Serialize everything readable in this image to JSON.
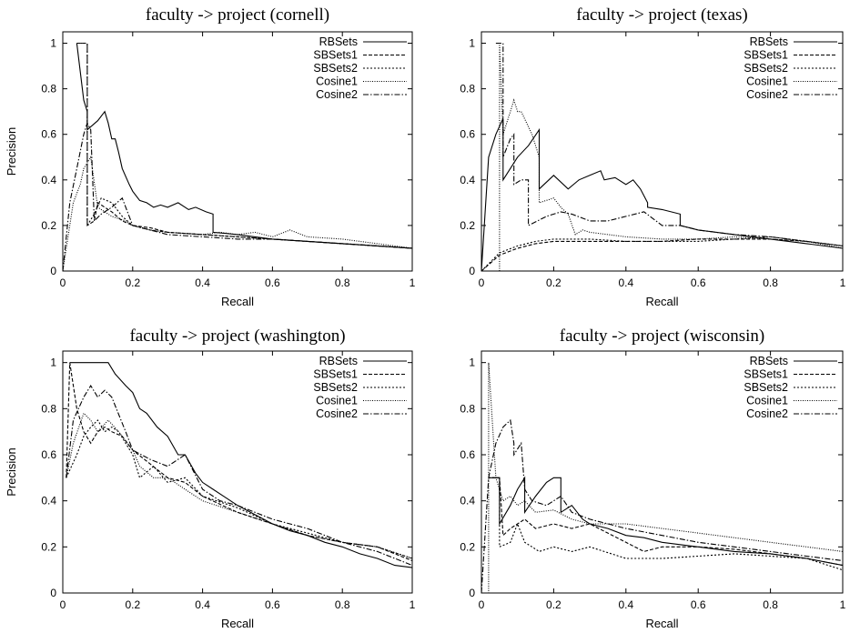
{
  "chart_data": [
    {
      "type": "line",
      "title": "faculty -> project (cornell)",
      "xlabel": "Recall",
      "ylabel": "Precision",
      "xlim": [
        0,
        1
      ],
      "ylim": [
        0,
        1.05
      ],
      "xticks": [
        "0",
        "0.2",
        "0.4",
        "0.6",
        "0.8",
        "1"
      ],
      "yticks": [
        "0",
        "0.2",
        "0.4",
        "0.6",
        "0.8",
        "1"
      ],
      "grid": false,
      "legend_position": "top-right",
      "series": [
        {
          "name": "RBSets",
          "dash": "solid",
          "x": [
            0.04,
            0.04,
            0.06,
            0.07,
            0.07,
            0.1,
            0.12,
            0.13,
            0.14,
            0.15,
            0.16,
            0.17,
            0.19,
            0.2,
            0.22,
            0.24,
            0.26,
            0.28,
            0.3,
            0.33,
            0.36,
            0.38,
            0.41,
            0.43,
            0.43,
            0.5,
            0.6,
            0.7,
            0.8,
            0.9,
            1.0
          ],
          "y": [
            1.0,
            1.0,
            0.75,
            0.7,
            0.62,
            0.66,
            0.7,
            0.65,
            0.58,
            0.58,
            0.52,
            0.45,
            0.38,
            0.35,
            0.31,
            0.3,
            0.28,
            0.29,
            0.28,
            0.3,
            0.27,
            0.28,
            0.26,
            0.25,
            0.17,
            0.16,
            0.14,
            0.13,
            0.12,
            0.11,
            0.1
          ]
        },
        {
          "name": "SBSets1",
          "dash": "dash",
          "x": [
            0.04,
            0.04,
            0.07,
            0.07,
            0.09,
            0.1,
            0.12,
            0.14,
            0.17,
            0.2,
            0.25,
            0.3,
            0.4,
            0.5,
            0.6,
            0.7,
            0.8,
            0.9,
            1.0
          ],
          "y": [
            1.0,
            1.0,
            1.0,
            0.2,
            0.22,
            0.3,
            0.28,
            0.26,
            0.22,
            0.2,
            0.19,
            0.17,
            0.16,
            0.15,
            0.14,
            0.13,
            0.12,
            0.11,
            0.1
          ]
        },
        {
          "name": "SBSets2",
          "dash": "dot",
          "x": [
            0.04,
            0.04,
            0.07,
            0.07,
            0.09,
            0.11,
            0.14,
            0.17,
            0.2,
            0.25,
            0.3,
            0.4,
            0.5,
            0.6,
            0.7,
            0.8,
            0.9,
            1.0
          ],
          "y": [
            1.0,
            1.0,
            1.0,
            0.2,
            0.25,
            0.32,
            0.3,
            0.24,
            0.2,
            0.18,
            0.17,
            0.16,
            0.15,
            0.14,
            0.13,
            0.12,
            0.11,
            0.1
          ]
        },
        {
          "name": "Cosine1",
          "dash": "finedot",
          "x": [
            0.0,
            0.03,
            0.05,
            0.06,
            0.08,
            0.08,
            0.1,
            0.14,
            0.18,
            0.2,
            0.25,
            0.3,
            0.4,
            0.45,
            0.5,
            0.55,
            0.6,
            0.65,
            0.7,
            0.8,
            0.9,
            1.0
          ],
          "y": [
            0.0,
            0.3,
            0.38,
            0.45,
            0.5,
            0.5,
            0.28,
            0.24,
            0.22,
            0.2,
            0.18,
            0.17,
            0.16,
            0.17,
            0.16,
            0.17,
            0.15,
            0.18,
            0.15,
            0.14,
            0.12,
            0.1
          ]
        },
        {
          "name": "Cosine2",
          "dash": "dashdot",
          "x": [
            0.0,
            0.02,
            0.04,
            0.06,
            0.07,
            0.08,
            0.09,
            0.11,
            0.14,
            0.17,
            0.2,
            0.25,
            0.3,
            0.4,
            0.5,
            0.6,
            0.7,
            0.8,
            0.9,
            1.0
          ],
          "y": [
            0.0,
            0.3,
            0.45,
            0.6,
            0.65,
            0.62,
            0.22,
            0.25,
            0.28,
            0.32,
            0.2,
            0.18,
            0.16,
            0.15,
            0.14,
            0.14,
            0.13,
            0.12,
            0.11,
            0.1
          ]
        }
      ]
    },
    {
      "type": "line",
      "title": "faculty -> project (texas)",
      "xlabel": "Recall",
      "ylabel": "",
      "xlim": [
        0,
        1
      ],
      "ylim": [
        0,
        1.05
      ],
      "xticks": [
        "0",
        "0.2",
        "0.4",
        "0.6",
        "0.8",
        "1"
      ],
      "yticks": [
        "0",
        "0.2",
        "0.4",
        "0.6",
        "0.8",
        "1"
      ],
      "grid": false,
      "legend_position": "top-right",
      "series": [
        {
          "name": "RBSets",
          "dash": "solid",
          "x": [
            0.0,
            0.02,
            0.04,
            0.06,
            0.06,
            0.1,
            0.13,
            0.16,
            0.16,
            0.2,
            0.24,
            0.27,
            0.3,
            0.33,
            0.34,
            0.37,
            0.4,
            0.42,
            0.44,
            0.46,
            0.46,
            0.5,
            0.55,
            0.55,
            0.6,
            0.7,
            0.8,
            0.9,
            1.0
          ],
          "y": [
            0.0,
            0.5,
            0.6,
            0.67,
            0.4,
            0.5,
            0.55,
            0.62,
            0.36,
            0.42,
            0.36,
            0.4,
            0.42,
            0.44,
            0.4,
            0.41,
            0.38,
            0.4,
            0.36,
            0.3,
            0.28,
            0.27,
            0.25,
            0.2,
            0.18,
            0.16,
            0.14,
            0.12,
            0.1
          ]
        },
        {
          "name": "SBSets1",
          "dash": "dash",
          "x": [
            0.0,
            0.05,
            0.1,
            0.15,
            0.2,
            0.3,
            0.4,
            0.5,
            0.6,
            0.7,
            0.8,
            0.9,
            1.0
          ],
          "y": [
            0.0,
            0.07,
            0.1,
            0.12,
            0.13,
            0.13,
            0.13,
            0.13,
            0.14,
            0.14,
            0.14,
            0.13,
            0.11
          ]
        },
        {
          "name": "SBSets2",
          "dash": "dot",
          "x": [
            0.0,
            0.05,
            0.1,
            0.15,
            0.2,
            0.3,
            0.4,
            0.5,
            0.6,
            0.7,
            0.8,
            0.9,
            1.0
          ],
          "y": [
            0.0,
            0.08,
            0.11,
            0.13,
            0.14,
            0.14,
            0.13,
            0.13,
            0.13,
            0.14,
            0.15,
            0.13,
            0.11
          ]
        },
        {
          "name": "Cosine1",
          "dash": "finedot",
          "x": [
            0.05,
            0.05,
            0.06,
            0.08,
            0.09,
            0.1,
            0.11,
            0.14,
            0.16,
            0.16,
            0.2,
            0.22,
            0.24,
            0.26,
            0.28,
            0.3,
            0.35,
            0.4,
            0.5,
            0.6,
            0.7,
            0.8,
            0.9,
            1.0
          ],
          "y": [
            0.0,
            1.0,
            0.6,
            0.7,
            0.75,
            0.7,
            0.7,
            0.6,
            0.5,
            0.3,
            0.32,
            0.28,
            0.25,
            0.16,
            0.18,
            0.17,
            0.16,
            0.15,
            0.14,
            0.14,
            0.15,
            0.14,
            0.13,
            0.1
          ]
        },
        {
          "name": "Cosine2",
          "dash": "dashdot",
          "x": [
            0.04,
            0.06,
            0.06,
            0.08,
            0.09,
            0.09,
            0.11,
            0.13,
            0.13,
            0.18,
            0.22,
            0.25,
            0.3,
            0.35,
            0.4,
            0.45,
            0.5,
            0.55,
            0.6,
            0.7,
            0.8,
            0.9,
            1.0
          ],
          "y": [
            1.0,
            1.0,
            0.5,
            0.58,
            0.6,
            0.38,
            0.4,
            0.4,
            0.2,
            0.24,
            0.26,
            0.25,
            0.22,
            0.22,
            0.24,
            0.26,
            0.2,
            0.2,
            0.18,
            0.16,
            0.15,
            0.13,
            0.11
          ]
        }
      ]
    },
    {
      "type": "line",
      "title": "faculty -> project (washington)",
      "xlabel": "Recall",
      "ylabel": "Precision",
      "xlim": [
        0,
        1
      ],
      "ylim": [
        0,
        1.05
      ],
      "xticks": [
        "0",
        "0.2",
        "0.4",
        "0.6",
        "0.8",
        "1"
      ],
      "yticks": [
        "0",
        "0.2",
        "0.4",
        "0.6",
        "0.8",
        "1"
      ],
      "grid": false,
      "legend_position": "top-right",
      "series": [
        {
          "name": "RBSets",
          "dash": "solid",
          "x": [
            0.02,
            0.05,
            0.1,
            0.13,
            0.15,
            0.18,
            0.2,
            0.22,
            0.24,
            0.27,
            0.3,
            0.33,
            0.35,
            0.38,
            0.4,
            0.43,
            0.46,
            0.5,
            0.55,
            0.6,
            0.65,
            0.7,
            0.75,
            0.8,
            0.85,
            0.9,
            0.95,
            1.0
          ],
          "y": [
            1.0,
            1.0,
            1.0,
            1.0,
            0.95,
            0.9,
            0.87,
            0.8,
            0.78,
            0.72,
            0.68,
            0.6,
            0.6,
            0.52,
            0.48,
            0.45,
            0.42,
            0.38,
            0.34,
            0.3,
            0.27,
            0.25,
            0.22,
            0.2,
            0.17,
            0.15,
            0.12,
            0.11
          ]
        },
        {
          "name": "SBSets1",
          "dash": "dash",
          "x": [
            0.01,
            0.02,
            0.04,
            0.06,
            0.08,
            0.1,
            0.12,
            0.14,
            0.17,
            0.2,
            0.25,
            0.3,
            0.35,
            0.4,
            0.5,
            0.6,
            0.7,
            0.8,
            0.9,
            1.0
          ],
          "y": [
            0.5,
            1.0,
            0.8,
            0.7,
            0.65,
            0.7,
            0.72,
            0.7,
            0.68,
            0.62,
            0.56,
            0.5,
            0.48,
            0.42,
            0.35,
            0.3,
            0.25,
            0.22,
            0.2,
            0.14
          ]
        },
        {
          "name": "SBSets2",
          "dash": "dot",
          "x": [
            0.01,
            0.04,
            0.06,
            0.08,
            0.1,
            0.12,
            0.14,
            0.16,
            0.2,
            0.22,
            0.26,
            0.3,
            0.35,
            0.4,
            0.5,
            0.6,
            0.7,
            0.8,
            0.9,
            1.0
          ],
          "y": [
            0.5,
            0.6,
            0.68,
            0.72,
            0.75,
            0.7,
            0.72,
            0.7,
            0.6,
            0.5,
            0.55,
            0.48,
            0.5,
            0.42,
            0.37,
            0.3,
            0.26,
            0.22,
            0.2,
            0.15
          ]
        },
        {
          "name": "Cosine1",
          "dash": "finedot",
          "x": [
            0.01,
            0.03,
            0.06,
            0.08,
            0.1,
            0.13,
            0.16,
            0.2,
            0.22,
            0.26,
            0.3,
            0.35,
            0.4,
            0.5,
            0.6,
            0.7,
            0.8,
            0.9,
            1.0
          ],
          "y": [
            0.5,
            0.65,
            0.78,
            0.75,
            0.7,
            0.75,
            0.7,
            0.62,
            0.55,
            0.5,
            0.5,
            0.45,
            0.4,
            0.35,
            0.3,
            0.25,
            0.22,
            0.2,
            0.15
          ]
        },
        {
          "name": "Cosine2",
          "dash": "dashdot",
          "x": [
            0.01,
            0.03,
            0.06,
            0.08,
            0.1,
            0.12,
            0.14,
            0.18,
            0.2,
            0.25,
            0.3,
            0.35,
            0.4,
            0.45,
            0.5,
            0.6,
            0.7,
            0.8,
            0.9,
            1.0
          ],
          "y": [
            0.5,
            0.75,
            0.85,
            0.9,
            0.85,
            0.88,
            0.85,
            0.7,
            0.62,
            0.58,
            0.55,
            0.6,
            0.45,
            0.4,
            0.38,
            0.32,
            0.28,
            0.22,
            0.18,
            0.12
          ]
        }
      ]
    },
    {
      "type": "line",
      "title": "faculty -> project (wisconsin)",
      "xlabel": "Recall",
      "ylabel": "",
      "xlim": [
        0,
        1
      ],
      "ylim": [
        0,
        1.05
      ],
      "xticks": [
        "0",
        "0.2",
        "0.4",
        "0.6",
        "0.8",
        "1"
      ],
      "yticks": [
        "0",
        "0.2",
        "0.4",
        "0.6",
        "0.8",
        "1"
      ],
      "grid": false,
      "legend_position": "top-right",
      "series": [
        {
          "name": "RBSets",
          "dash": "solid",
          "x": [
            0.02,
            0.05,
            0.05,
            0.08,
            0.1,
            0.12,
            0.12,
            0.15,
            0.18,
            0.2,
            0.22,
            0.22,
            0.25,
            0.28,
            0.3,
            0.35,
            0.4,
            0.45,
            0.5,
            0.6,
            0.7,
            0.8,
            0.9,
            1.0
          ],
          "y": [
            0.5,
            0.5,
            0.3,
            0.38,
            0.45,
            0.5,
            0.35,
            0.42,
            0.48,
            0.5,
            0.5,
            0.35,
            0.38,
            0.32,
            0.3,
            0.28,
            0.25,
            0.24,
            0.22,
            0.2,
            0.18,
            0.17,
            0.15,
            0.12
          ]
        },
        {
          "name": "SBSets1",
          "dash": "dash",
          "x": [
            0.03,
            0.05,
            0.06,
            0.08,
            0.1,
            0.12,
            0.15,
            0.2,
            0.25,
            0.3,
            0.4,
            0.45,
            0.5,
            0.6,
            0.7,
            0.8,
            0.9,
            1.0
          ],
          "y": [
            0.5,
            0.5,
            0.25,
            0.28,
            0.3,
            0.32,
            0.28,
            0.3,
            0.28,
            0.3,
            0.22,
            0.18,
            0.2,
            0.2,
            0.19,
            0.17,
            0.15,
            0.12
          ]
        },
        {
          "name": "SBSets2",
          "dash": "dot",
          "x": [
            0.02,
            0.05,
            0.05,
            0.08,
            0.1,
            0.12,
            0.14,
            0.16,
            0.2,
            0.25,
            0.3,
            0.4,
            0.5,
            0.6,
            0.7,
            0.8,
            0.9,
            1.0
          ],
          "y": [
            0.5,
            0.5,
            0.2,
            0.22,
            0.3,
            0.22,
            0.2,
            0.18,
            0.2,
            0.18,
            0.2,
            0.15,
            0.15,
            0.16,
            0.17,
            0.16,
            0.15,
            0.1
          ]
        },
        {
          "name": "Cosine1",
          "dash": "finedot",
          "x": [
            0.0,
            0.02,
            0.02,
            0.04,
            0.06,
            0.08,
            0.1,
            0.12,
            0.15,
            0.2,
            0.25,
            0.3,
            0.4,
            0.5,
            0.6,
            0.7,
            0.8,
            0.9,
            1.0
          ],
          "y": [
            0.0,
            0.0,
            1.0,
            0.5,
            0.4,
            0.42,
            0.38,
            0.4,
            0.35,
            0.36,
            0.32,
            0.3,
            0.3,
            0.28,
            0.26,
            0.24,
            0.22,
            0.2,
            0.18
          ]
        },
        {
          "name": "Cosine2",
          "dash": "dashdot",
          "x": [
            0.0,
            0.02,
            0.04,
            0.06,
            0.08,
            0.09,
            0.09,
            0.11,
            0.12,
            0.14,
            0.18,
            0.22,
            0.25,
            0.3,
            0.35,
            0.4,
            0.5,
            0.6,
            0.7,
            0.8,
            0.9,
            1.0
          ],
          "y": [
            0.0,
            0.5,
            0.65,
            0.72,
            0.75,
            0.65,
            0.6,
            0.65,
            0.45,
            0.4,
            0.38,
            0.42,
            0.35,
            0.32,
            0.3,
            0.28,
            0.25,
            0.22,
            0.2,
            0.18,
            0.16,
            0.14
          ]
        }
      ]
    }
  ]
}
